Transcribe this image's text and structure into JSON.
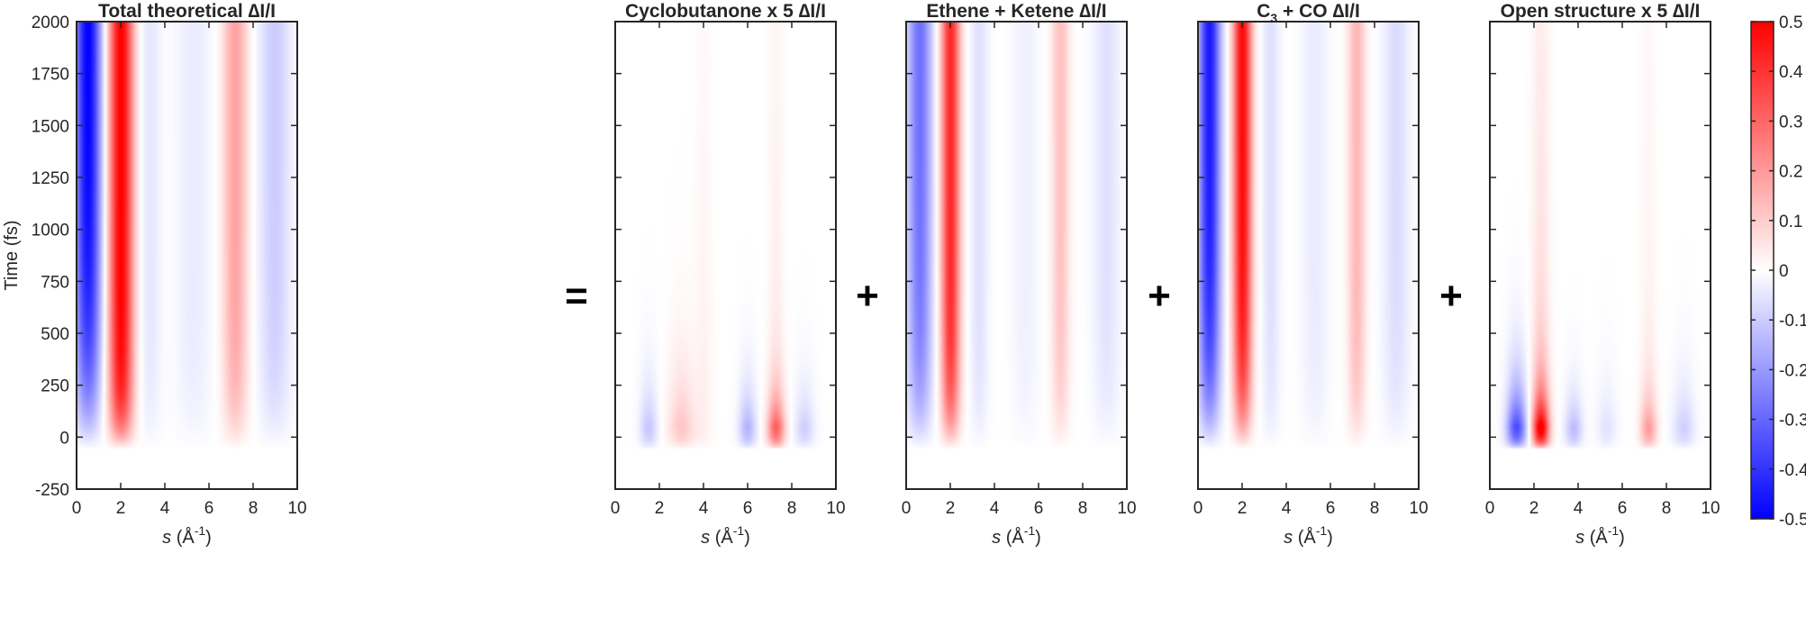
{
  "chart_data": {
    "type": "heatmap",
    "colormap": {
      "low": "#0000ff",
      "mid": "#ffffff",
      "high": "#ff0000"
    },
    "clim": [
      -0.5,
      0.5
    ],
    "colorbar": {
      "position": "right",
      "ticks": [
        -0.5,
        -0.4,
        -0.3,
        -0.2,
        -0.1,
        0,
        0.1,
        0.2,
        0.3,
        0.4,
        0.5
      ],
      "tick_labels": [
        "-0.5",
        "-0.4",
        "-0.3",
        "-0.2",
        "-0.1",
        "0",
        "0.1",
        "0.2",
        "0.3",
        "0.4",
        "0.5"
      ]
    },
    "x_ticks": [
      0,
      2,
      4,
      6,
      8,
      10
    ],
    "x_tick_labels": [
      "0",
      "2",
      "4",
      "6",
      "8",
      "10"
    ],
    "y_ticks": [
      -250,
      0,
      250,
      500,
      750,
      1000,
      1250,
      1500,
      1750,
      2000
    ],
    "y_tick_labels": [
      "-250",
      "0",
      "250",
      "500",
      "750",
      "1000",
      "1250",
      "1500",
      "1750",
      "2000"
    ],
    "xlim": [
      0,
      10
    ],
    "ylim": [
      -250,
      2000
    ],
    "xlabel_symbol": "s",
    "xlabel_unit": "(Å",
    "xlabel_exp": "-1",
    "xlabel_close": ")",
    "ylabel": "Time (fs)",
    "operators": [
      "=",
      "+",
      "+",
      "+"
    ],
    "panels": [
      {
        "id": "total",
        "title": "Total theoretical ∆I/I",
        "title_parts": null,
        "features": [
          {
            "s": 0.5,
            "width": 0.6,
            "amp": -0.5,
            "rise_time": 400
          },
          {
            "s": 2.0,
            "width": 0.55,
            "amp": 0.5,
            "rise_time": 150
          },
          {
            "s": 3.3,
            "width": 0.5,
            "amp": -0.05,
            "rise_time": 200
          },
          {
            "s": 5.3,
            "width": 0.8,
            "amp": -0.04,
            "rise_time": 200
          },
          {
            "s": 7.2,
            "width": 0.55,
            "amp": 0.18,
            "rise_time": 200
          },
          {
            "s": 9.0,
            "width": 0.7,
            "amp": -0.1,
            "rise_time": 250
          }
        ]
      },
      {
        "id": "cyclobutanone",
        "title": "Cyclobutanone x 5 ∆I/I",
        "title_parts": null,
        "features": [
          {
            "s": 1.5,
            "width": 0.4,
            "amp": -0.12,
            "rise_time": 0,
            "decay_time": 200
          },
          {
            "s": 3.0,
            "width": 0.6,
            "amp": 0.12,
            "rise_time": 0,
            "decay_time": 280
          },
          {
            "s": 4.0,
            "width": 0.4,
            "amp": 0.03,
            "rise_time": 0,
            "decay_time": 2000
          },
          {
            "s": 6.0,
            "width": 0.4,
            "amp": -0.16,
            "rise_time": 0,
            "decay_time": 180
          },
          {
            "s": 7.3,
            "width": 0.4,
            "amp": 0.3,
            "rise_time": 0,
            "decay_time": 150
          },
          {
            "s": 7.3,
            "width": 0.35,
            "amp": 0.04,
            "rise_time": 0,
            "decay_time": 2500
          },
          {
            "s": 8.6,
            "width": 0.45,
            "amp": -0.1,
            "rise_time": 0,
            "decay_time": 180
          }
        ]
      },
      {
        "id": "ethene-ketene",
        "title": "Ethene + Ketene ∆I/I",
        "title_parts": null,
        "features": [
          {
            "s": 0.6,
            "width": 0.55,
            "amp": -0.28,
            "rise_time": 280
          },
          {
            "s": 2.0,
            "width": 0.42,
            "amp": 0.42,
            "rise_time": 200
          },
          {
            "s": 3.3,
            "width": 0.4,
            "amp": -0.06,
            "rise_time": 200
          },
          {
            "s": 5.4,
            "width": 0.6,
            "amp": -0.03,
            "rise_time": 200
          },
          {
            "s": 7.0,
            "width": 0.4,
            "amp": 0.12,
            "rise_time": 220
          },
          {
            "s": 9.1,
            "width": 0.6,
            "amp": -0.06,
            "rise_time": 250
          }
        ]
      },
      {
        "id": "c3-co",
        "title": "",
        "title_parts": [
          "C",
          "3",
          " + CO ∆I/I"
        ],
        "features": [
          {
            "s": 0.5,
            "width": 0.5,
            "amp": -0.45,
            "rise_time": 330
          },
          {
            "s": 2.0,
            "width": 0.42,
            "amp": 0.48,
            "rise_time": 250
          },
          {
            "s": 3.3,
            "width": 0.4,
            "amp": -0.06,
            "rise_time": 200
          },
          {
            "s": 5.3,
            "width": 0.6,
            "amp": -0.04,
            "rise_time": 200
          },
          {
            "s": 7.2,
            "width": 0.4,
            "amp": 0.14,
            "rise_time": 220
          },
          {
            "s": 9.0,
            "width": 0.6,
            "amp": -0.07,
            "rise_time": 250
          }
        ]
      },
      {
        "id": "open-structure",
        "title": "Open structure x 5 ∆I/I",
        "title_parts": null,
        "features": [
          {
            "s": 1.2,
            "width": 0.45,
            "amp": -0.38,
            "rise_time": 0,
            "decay_time": 200
          },
          {
            "s": 2.3,
            "width": 0.38,
            "amp": 0.5,
            "rise_time": 0,
            "decay_time": 160
          },
          {
            "s": 2.3,
            "width": 0.4,
            "amp": 0.08,
            "rise_time": 0,
            "decay_time": 2500
          },
          {
            "s": 3.8,
            "width": 0.4,
            "amp": -0.14,
            "rise_time": 0,
            "decay_time": 150
          },
          {
            "s": 5.3,
            "width": 0.45,
            "amp": -0.06,
            "rise_time": 0,
            "decay_time": 200
          },
          {
            "s": 7.2,
            "width": 0.38,
            "amp": 0.18,
            "rise_time": 0,
            "decay_time": 150
          },
          {
            "s": 7.2,
            "width": 0.35,
            "amp": 0.03,
            "rise_time": 0,
            "decay_time": 2500
          },
          {
            "s": 8.8,
            "width": 0.5,
            "amp": -0.1,
            "rise_time": 0,
            "decay_time": 200
          }
        ]
      }
    ]
  }
}
